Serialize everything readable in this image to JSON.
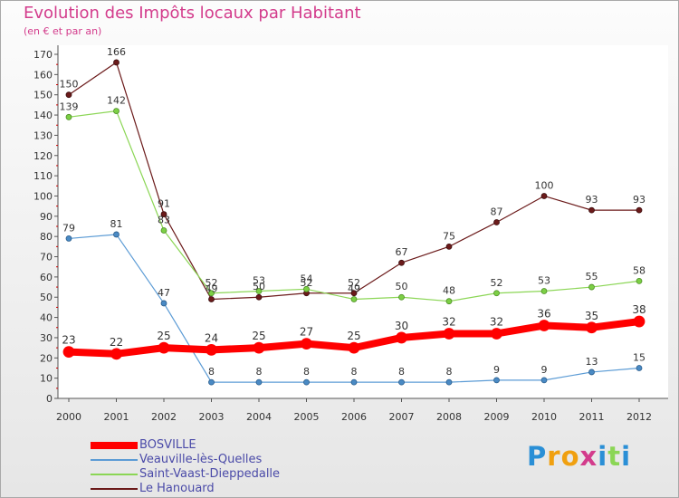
{
  "title": "Evolution des Impôts locaux par Habitant",
  "subtitle": "(en € et par an)",
  "logo_text": "Proxiti",
  "chart_data": {
    "type": "line",
    "title": "Evolution des Impôts locaux par Habitant",
    "ylabel": "(en € et par an)",
    "xlabel": "",
    "x": [
      "2000",
      "2001",
      "2002",
      "2003",
      "2004",
      "2005",
      "2006",
      "2007",
      "2008",
      "2009",
      "2010",
      "2011",
      "2012"
    ],
    "ylim": [
      0,
      170
    ],
    "yticks": [
      0,
      10,
      20,
      30,
      40,
      50,
      60,
      70,
      80,
      90,
      100,
      110,
      120,
      130,
      140,
      150,
      160,
      170
    ],
    "grid": false,
    "legend_position": "bottom-left",
    "series": [
      {
        "name": "BOSVILLE",
        "color": "#ff0000",
        "values": [
          23,
          22,
          25,
          24,
          25,
          27,
          25,
          30,
          32,
          32,
          36,
          35,
          38
        ]
      },
      {
        "name": "Veauville-lès-Quelles",
        "color": "#5b9bd5",
        "values": [
          79,
          81,
          47,
          8,
          8,
          8,
          8,
          8,
          8,
          9,
          9,
          13,
          15
        ]
      },
      {
        "name": "Saint-Vaast-Dieppedalle",
        "color": "#8bd655",
        "values": [
          139,
          142,
          83,
          52,
          53,
          54,
          49,
          50,
          48,
          52,
          53,
          55,
          58
        ]
      },
      {
        "name": "Le Hanouard",
        "color": "#6b1a1a",
        "values": [
          150,
          166,
          91,
          49,
          50,
          52,
          52,
          67,
          75,
          87,
          100,
          93,
          93
        ]
      }
    ]
  }
}
